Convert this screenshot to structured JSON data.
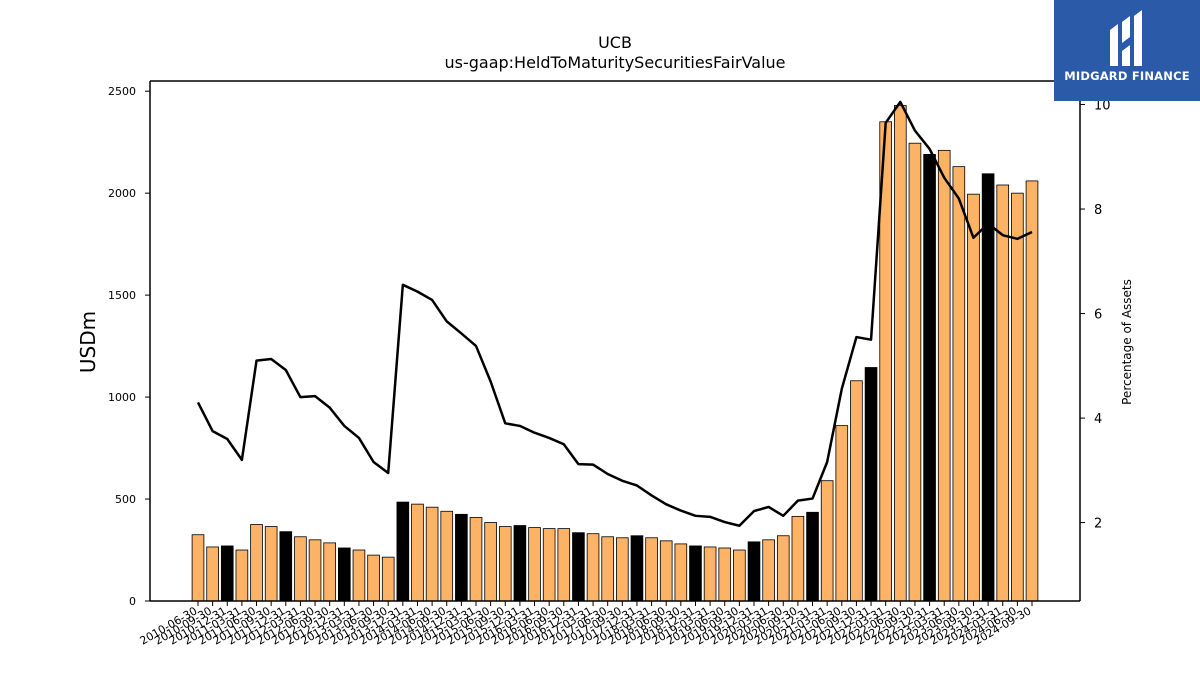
{
  "chart_data": {
    "type": "bar+line",
    "title": "UCB",
    "subtitle": "us-gaap:HeldToMaturitySecuritiesFairValue",
    "ylabel": "USDm",
    "y2label": "Percentage of Assets",
    "ylim": [
      0,
      2550
    ],
    "y2lim": [
      0.5,
      10.45
    ],
    "yticks": [
      0,
      500,
      1000,
      1500,
      2000,
      2500
    ],
    "y2ticks": [
      2,
      4,
      6,
      8,
      10
    ],
    "colors": {
      "bar": "#fdb366",
      "bar_highlight": "#000000",
      "line": "#000000"
    },
    "categories": [
      "2010-06-30",
      "2010-09-30",
      "2010-12-31",
      "2011-03-31",
      "2011-06-30",
      "2011-09-30",
      "2011-12-31",
      "2012-03-31",
      "2012-06-30",
      "2012-09-30",
      "2012-12-31",
      "2013-03-31",
      "2013-06-30",
      "2013-09-30",
      "2013-12-31",
      "2014-03-31",
      "2014-06-30",
      "2014-09-30",
      "2014-12-31",
      "2015-03-31",
      "2015-06-30",
      "2015-09-30",
      "2015-12-31",
      "2016-03-31",
      "2016-06-30",
      "2016-09-30",
      "2016-12-31",
      "2017-03-31",
      "2017-06-30",
      "2017-09-30",
      "2017-12-31",
      "2018-03-31",
      "2018-06-30",
      "2018-09-30",
      "2018-12-31",
      "2019-03-31",
      "2019-06-30",
      "2019-09-30",
      "2019-12-31",
      "2020-03-31",
      "2020-06-30",
      "2020-09-30",
      "2020-12-31",
      "2021-03-31",
      "2021-06-30",
      "2021-09-30",
      "2021-12-31",
      "2022-03-31",
      "2022-06-30",
      "2022-09-30",
      "2022-12-31",
      "2023-03-31",
      "2023-06-30",
      "2023-09-30",
      "2023-12-31",
      "2024-03-31",
      "2024-06-30",
      "2024-09-30"
    ],
    "tick_labels": [
      "2010-06-30",
      "2010-09-30",
      "2010-12-31",
      "2011-03-31",
      "2011-06-30",
      "2011-09-30",
      "2011-12-31",
      "2012-03-31",
      "2012-06-30",
      "2012-09-30",
      "2012-12-31",
      "2013-03-31",
      "2013-06-30",
      "2013-09-30",
      "2013-12-31",
      "2014-03-31",
      "2014-06-30",
      "2014-09-30",
      "2014-12-31",
      "2015-03-31",
      "2015-06-30",
      "2015-09-30",
      "2015-12-31",
      "2016-03-31",
      "2016-06-30",
      "2016-09-30",
      "2016-12-31",
      "2017-03-31",
      "2017-06-30",
      "2017-09-30",
      "2017-12-31",
      "2018-03-31",
      "2018-06-30",
      "2018-09-30",
      "2018-12-31",
      "2019-03-31",
      "2019-06-30",
      "2019-09-30",
      "2019-12-31",
      "2020-03-31",
      "2020-06-30",
      "2020-09-30",
      "2020-12-31",
      "2021-03-31",
      "2021-06-30",
      "2021-09-30",
      "2021-12-31",
      "2022-03-31",
      "2022-06-30",
      "2022-09-30",
      "2022-12-31",
      "2023-03-31",
      "2023-06-30",
      "2023-09-30",
      "2023-12-31",
      "2024-03-31",
      "2024-06-30",
      "2024-09-30"
    ],
    "bar_values": [
      325,
      265,
      270,
      250,
      375,
      365,
      340,
      315,
      300,
      285,
      260,
      250,
      225,
      215,
      485,
      475,
      460,
      440,
      425,
      410,
      385,
      365,
      370,
      360,
      355,
      355,
      335,
      330,
      315,
      310,
      320,
      310,
      295,
      280,
      270,
      265,
      260,
      250,
      290,
      300,
      320,
      415,
      435,
      590,
      860,
      1080,
      1145,
      2350,
      2430,
      2245,
      2190,
      2210,
      2130,
      1995,
      2095,
      2040,
      2000,
      2060
    ],
    "bar_highlight": [
      false,
      false,
      true,
      false,
      false,
      false,
      true,
      false,
      false,
      false,
      true,
      false,
      false,
      false,
      true,
      false,
      false,
      false,
      true,
      false,
      false,
      false,
      true,
      false,
      false,
      false,
      true,
      false,
      false,
      false,
      true,
      false,
      false,
      false,
      true,
      false,
      false,
      false,
      true,
      false,
      false,
      false,
      true,
      false,
      false,
      false,
      true,
      false,
      false,
      false,
      true,
      false,
      false,
      false,
      true,
      false,
      false,
      false
    ],
    "line_values": [
      4.3,
      3.75,
      3.6,
      3.2,
      5.1,
      5.13,
      4.92,
      4.4,
      4.42,
      4.2,
      3.85,
      3.62,
      3.16,
      2.95,
      6.55,
      6.42,
      6.26,
      5.85,
      5.62,
      5.38,
      4.7,
      3.9,
      3.85,
      3.72,
      3.62,
      3.5,
      3.12,
      3.11,
      2.93,
      2.8,
      2.71,
      2.52,
      2.35,
      2.23,
      2.13,
      2.11,
      2.01,
      1.94,
      2.22,
      2.3,
      2.13,
      2.42,
      2.46,
      3.16,
      4.56,
      5.55,
      5.5,
      9.65,
      10.05,
      9.5,
      9.15,
      8.6,
      8.2,
      7.45,
      7.72,
      7.5,
      7.43,
      7.56
    ]
  },
  "logo": {
    "text": "MIDGARD FINANCE"
  }
}
